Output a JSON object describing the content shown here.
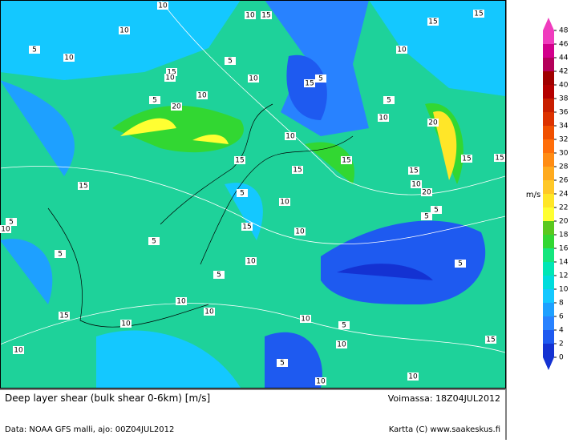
{
  "title": "Deep layer shear (bulk shear 0-6km) [m/s]",
  "valid": "Voimassa: 18Z04JUL2012",
  "source": "Data: NOAA GFS malli, ajo: 00Z04JUL2012",
  "credit": "Kartta (C) www.saakeskus.fi",
  "colorbar": {
    "unit": "m/s",
    "ticks": [
      0,
      2,
      4,
      6,
      8,
      10,
      12,
      14,
      16,
      18,
      20,
      22,
      24,
      26,
      28,
      30,
      32,
      34,
      36,
      38,
      40,
      42,
      44,
      46,
      48
    ],
    "colors": [
      "#1432d2",
      "#1e5af0",
      "#2882ff",
      "#1ea0ff",
      "#14c8ff",
      "#00dcdc",
      "#00e6b4",
      "#14e67d",
      "#32d732",
      "#5ac81e",
      "#ffff32",
      "#ffe628",
      "#ffc828",
      "#ffaa1e",
      "#ff8c14",
      "#ff6e0a",
      "#f05000",
      "#dc3200",
      "#c81e00",
      "#b40000",
      "#a00000",
      "#b4005a",
      "#d2008c",
      "#f03cbe"
    ]
  },
  "contour_labels": [
    10,
    10,
    15,
    15,
    15,
    10,
    5,
    10,
    5,
    10,
    15,
    10,
    10,
    5,
    15,
    5,
    10,
    20,
    5,
    10,
    20,
    10,
    15,
    15,
    15,
    15,
    15,
    15,
    15,
    10,
    20,
    5,
    10,
    5,
    5,
    5,
    10,
    5,
    15,
    10,
    5,
    10,
    5,
    5,
    10,
    10,
    10,
    10,
    15,
    5,
    10,
    15,
    10,
    5,
    10,
    10
  ]
}
